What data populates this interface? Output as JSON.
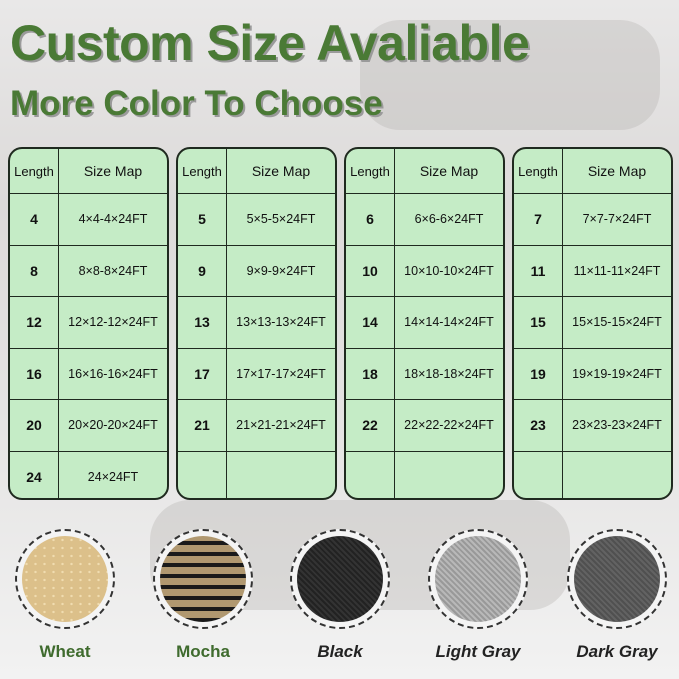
{
  "title": "Custom Size Avaliable",
  "subtitle": "More Color To Choose",
  "tables": [
    {
      "header": [
        "Length",
        "Size Map"
      ],
      "rows": [
        [
          "4",
          "4×4-4×24FT"
        ],
        [
          "8",
          "8×8-8×24FT"
        ],
        [
          "12",
          "12×12-12×24FT"
        ],
        [
          "16",
          "16×16-16×24FT"
        ],
        [
          "20",
          "20×20-20×24FT"
        ],
        [
          "24",
          "24×24FT"
        ]
      ]
    },
    {
      "header": [
        "Length",
        "Size Map"
      ],
      "rows": [
        [
          "5",
          "5×5-5×24FT"
        ],
        [
          "9",
          "9×9-9×24FT"
        ],
        [
          "13",
          "13×13-13×24FT"
        ],
        [
          "17",
          "17×17-17×24FT"
        ],
        [
          "21",
          "21×21-21×24FT"
        ],
        [
          "",
          ""
        ]
      ]
    },
    {
      "header": [
        "Length",
        "Size Map"
      ],
      "rows": [
        [
          "6",
          "6×6-6×24FT"
        ],
        [
          "10",
          "10×10-10×24FT"
        ],
        [
          "14",
          "14×14-14×24FT"
        ],
        [
          "18",
          "18×18-18×24FT"
        ],
        [
          "22",
          "22×22-22×24FT"
        ],
        [
          "",
          ""
        ]
      ]
    },
    {
      "header": [
        "Length",
        "Size Map"
      ],
      "rows": [
        [
          "7",
          "7×7-7×24FT"
        ],
        [
          "11",
          "11×11-11×24FT"
        ],
        [
          "15",
          "15×15-15×24FT"
        ],
        [
          "19",
          "19×19-19×24FT"
        ],
        [
          "23",
          "23×23-23×24FT"
        ],
        [
          "",
          ""
        ]
      ]
    }
  ],
  "colors": [
    {
      "name": "Wheat",
      "hex": "#dcc08a"
    },
    {
      "name": "Mocha",
      "hex": "#b09870"
    },
    {
      "name": "Black",
      "hex": "#2a2a2a"
    },
    {
      "name": "Light Gray",
      "hex": "#a8a8a8"
    },
    {
      "name": "Dark Gray",
      "hex": "#5a5a5a"
    }
  ]
}
